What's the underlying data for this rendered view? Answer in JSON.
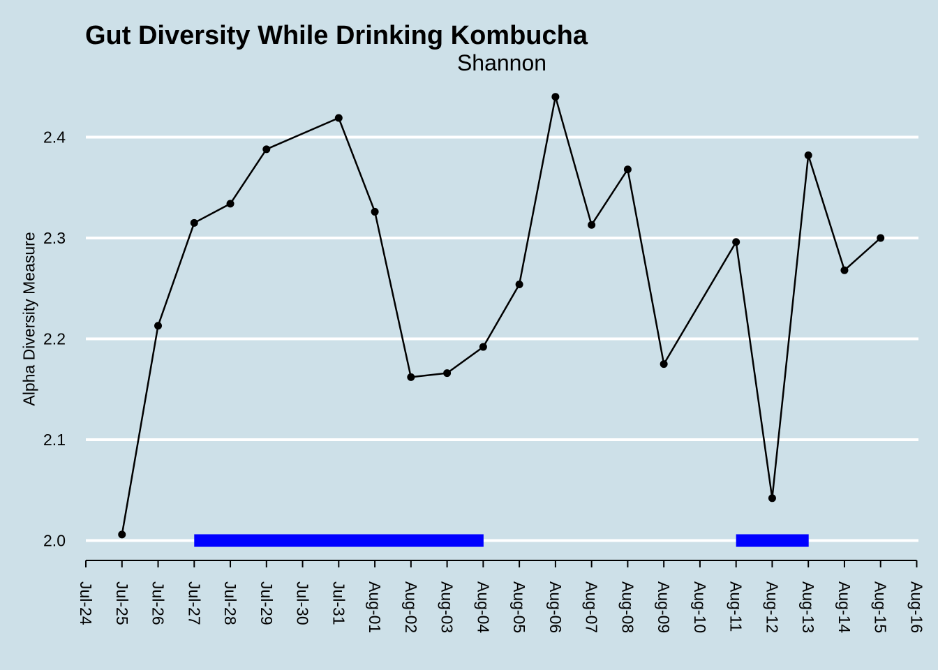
{
  "chart_data": {
    "type": "line",
    "title": "Gut Diversity While Drinking Kombucha",
    "subtitle": "Shannon",
    "xlabel": "",
    "ylabel": "Alpha Diversity Measure",
    "x_ticks": [
      "Jul-24",
      "Jul-25",
      "Jul-26",
      "Jul-27",
      "Jul-28",
      "Jul-29",
      "Jul-30",
      "Jul-31",
      "Aug-01",
      "Aug-02",
      "Aug-03",
      "Aug-04",
      "Aug-05",
      "Aug-06",
      "Aug-07",
      "Aug-08",
      "Aug-09",
      "Aug-10",
      "Aug-11",
      "Aug-12",
      "Aug-13",
      "Aug-14",
      "Aug-15",
      "Aug-16"
    ],
    "y_ticks": [
      2.0,
      2.1,
      2.2,
      2.3,
      2.4
    ],
    "y_tick_labels": [
      "2.0",
      "2.1",
      "2.2",
      "2.3",
      "2.4"
    ],
    "ylim": [
      1.985,
      2.455
    ],
    "grid": "horizontal",
    "legend": "none",
    "series": [
      {
        "x": [
          "Jul-25",
          "Jul-26",
          "Jul-27",
          "Jul-28",
          "Jul-29",
          "Jul-31",
          "Aug-01",
          "Aug-02",
          "Aug-03",
          "Aug-04",
          "Aug-05",
          "Aug-06",
          "Aug-07",
          "Aug-08",
          "Aug-09",
          "Aug-11",
          "Aug-12",
          "Aug-13",
          "Aug-14",
          "Aug-15"
        ],
        "values": [
          2.006,
          2.213,
          2.315,
          2.334,
          2.388,
          2.419,
          2.326,
          2.162,
          2.166,
          2.192,
          2.254,
          2.44,
          2.313,
          2.368,
          2.175,
          2.296,
          2.042,
          2.382,
          2.268,
          2.3
        ],
        "color": "#000000"
      }
    ],
    "kombucha_days": [
      "Jul-27",
      "Jul-28",
      "Jul-29",
      "Jul-30",
      "Jul-31",
      "Aug-01",
      "Aug-02",
      "Aug-03",
      "Aug-11",
      "Aug-12"
    ],
    "kombucha_bar_value": 2.0,
    "kombucha_color": "#0000ff"
  }
}
